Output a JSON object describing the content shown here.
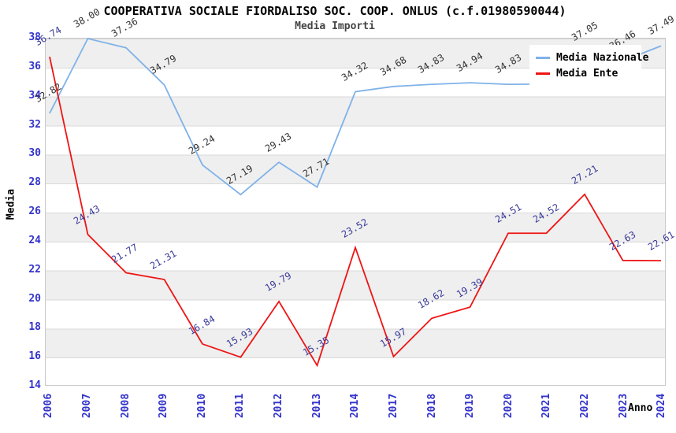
{
  "chart_data": {
    "type": "line",
    "title": "COOPERATIVA SOCIALE FIORDALISO SOC. COOP. ONLUS (c.f.01980590044)",
    "subtitle": "Media Importi",
    "xlabel": "Anno",
    "ylabel": "Media",
    "ylim": [
      14,
      38
    ],
    "y_tick_step": 2,
    "y_ticks": [
      "38",
      "36",
      "34",
      "32",
      "30",
      "28",
      "26",
      "24",
      "22",
      "20",
      "18",
      "16",
      "14"
    ],
    "grid": "horizontal-bands",
    "band_color": "#efefef",
    "gridline_color": "#d9d9d9",
    "legend_position": "top-right",
    "categories": [
      "2006",
      "2007",
      "2008",
      "2009",
      "2010",
      "2011",
      "2012",
      "2013",
      "2014",
      "2017",
      "2018",
      "2019",
      "2020",
      "2021",
      "2022",
      "2023",
      "2024"
    ],
    "series": [
      {
        "name": "Media Nazionale",
        "color": "#7fb2e8",
        "label_color": "#333333",
        "values": [
          32.82,
          38.0,
          37.36,
          34.79,
          29.24,
          27.19,
          29.43,
          27.71,
          34.32,
          34.68,
          34.83,
          34.94,
          34.83,
          34.85,
          37.05,
          36.46,
          37.49
        ],
        "labels": [
          "32.82",
          "38.00",
          "37.36",
          "34.79",
          "29.24",
          "27.19",
          "29.43",
          "27.71",
          "34.32",
          "34.68",
          "34.83",
          "34.94",
          "34.83",
          null,
          "37.05",
          "36.46",
          "37.49"
        ]
      },
      {
        "name": "Media Ente",
        "color": "#ee1414",
        "label_color": "#3a3a99",
        "values": [
          36.74,
          24.43,
          21.77,
          21.31,
          16.84,
          15.93,
          19.79,
          15.35,
          23.52,
          15.97,
          18.62,
          19.39,
          24.51,
          24.52,
          27.21,
          22.63,
          22.61
        ],
        "labels": [
          "36.74",
          "24.43",
          "21.77",
          "21.31",
          "16.84",
          "15.93",
          "19.79",
          "15.35",
          "23.52",
          "15.97",
          "18.62",
          "19.39",
          "24.51",
          "24.52",
          "27.21",
          "22.63",
          "22.61"
        ]
      }
    ],
    "legend": [
      {
        "name": "Media Nazionale",
        "color": "#7fb2e8"
      },
      {
        "name": "Media Ente",
        "color": "#ee1414"
      }
    ]
  }
}
